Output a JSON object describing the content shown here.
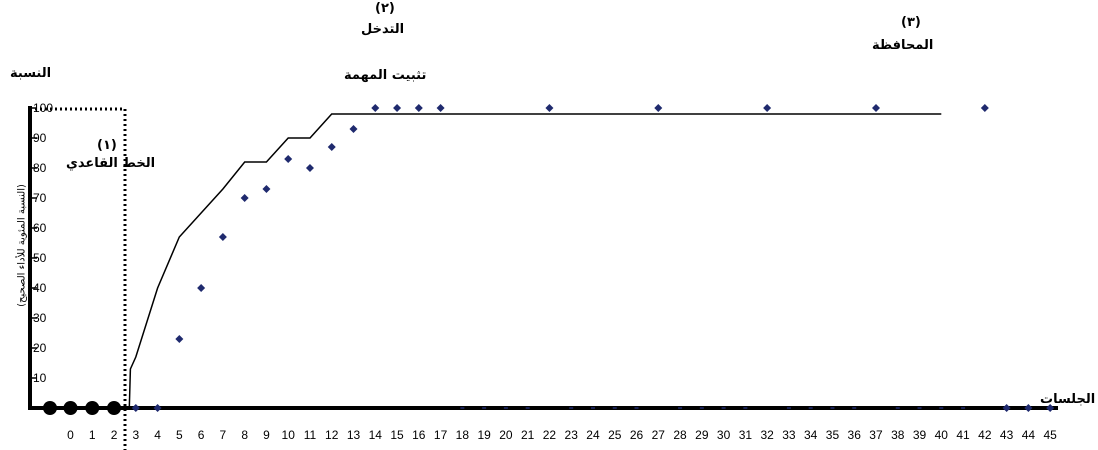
{
  "chart_data": {
    "type": "scatter",
    "ylabel": "النسبة",
    "y_axis_title": "(النسبة المئوية للأداء الصحيح)",
    "xlabel": "الجلسات",
    "ylim": [
      0,
      100
    ],
    "y_ticks": [
      10,
      20,
      30,
      40,
      50,
      60,
      70,
      80,
      90,
      100
    ],
    "x_ticks": [
      0,
      1,
      2,
      3,
      4,
      5,
      6,
      7,
      8,
      9,
      10,
      11,
      12,
      13,
      14,
      15,
      16,
      17,
      18,
      19,
      20,
      21,
      22,
      23,
      24,
      25,
      26,
      27,
      28,
      29,
      30,
      31,
      32,
      33,
      34,
      35,
      36,
      37,
      38,
      39,
      40,
      41,
      42,
      43,
      44,
      45
    ],
    "phases": [
      {
        "number": "(١)",
        "name": "الخط القاعدي"
      },
      {
        "number": "(٢)",
        "name": "التدخل",
        "subname": "تثبيت المهمة"
      },
      {
        "number": "(٣)",
        "name": "المحافظة"
      }
    ],
    "baseline_points": [
      {
        "x": 0,
        "y": 0
      },
      {
        "x": 1,
        "y": 0
      },
      {
        "x": 2,
        "y": 0
      }
    ],
    "intervention_points": [
      {
        "x": 3,
        "y": 0
      },
      {
        "x": 4,
        "y": 0
      },
      {
        "x": 5,
        "y": 23
      },
      {
        "x": 6,
        "y": 40
      },
      {
        "x": 7,
        "y": 57
      },
      {
        "x": 8,
        "y": 70
      },
      {
        "x": 9,
        "y": 73
      },
      {
        "x": 10,
        "y": 83
      },
      {
        "x": 11,
        "y": 80
      },
      {
        "x": 12,
        "y": 87
      },
      {
        "x": 13,
        "y": 93
      },
      {
        "x": 14,
        "y": 100
      },
      {
        "x": 15,
        "y": 100
      },
      {
        "x": 16,
        "y": 100
      },
      {
        "x": 17,
        "y": 100
      },
      {
        "x": 22,
        "y": 100
      },
      {
        "x": 27,
        "y": 100
      },
      {
        "x": 32,
        "y": 100
      },
      {
        "x": 37,
        "y": 100
      },
      {
        "x": 42,
        "y": 100
      },
      {
        "x": 43,
        "y": 0
      },
      {
        "x": 44,
        "y": 0
      },
      {
        "x": 45,
        "y": 0
      }
    ],
    "zero_series_x": [
      18,
      19,
      20,
      21,
      23,
      24,
      25,
      26,
      28,
      29,
      30,
      31,
      33,
      34,
      35,
      36,
      38,
      39,
      40,
      41
    ],
    "cumulative_line": [
      {
        "x": 2.7,
        "y": 0
      },
      {
        "x": 2.75,
        "y": 13
      },
      {
        "x": 3,
        "y": 17
      },
      {
        "x": 4,
        "y": 40
      },
      {
        "x": 5,
        "y": 57
      },
      {
        "x": 6,
        "y": 65
      },
      {
        "x": 7,
        "y": 73
      },
      {
        "x": 8,
        "y": 82
      },
      {
        "x": 9,
        "y": 82
      },
      {
        "x": 10,
        "y": 90
      },
      {
        "x": 11,
        "y": 90
      },
      {
        "x": 12,
        "y": 98
      },
      {
        "x": 40,
        "y": 98
      }
    ],
    "grid": false,
    "colors": {
      "points": "#1f2a6e",
      "baseline": "#000000",
      "line": "#000000"
    }
  }
}
